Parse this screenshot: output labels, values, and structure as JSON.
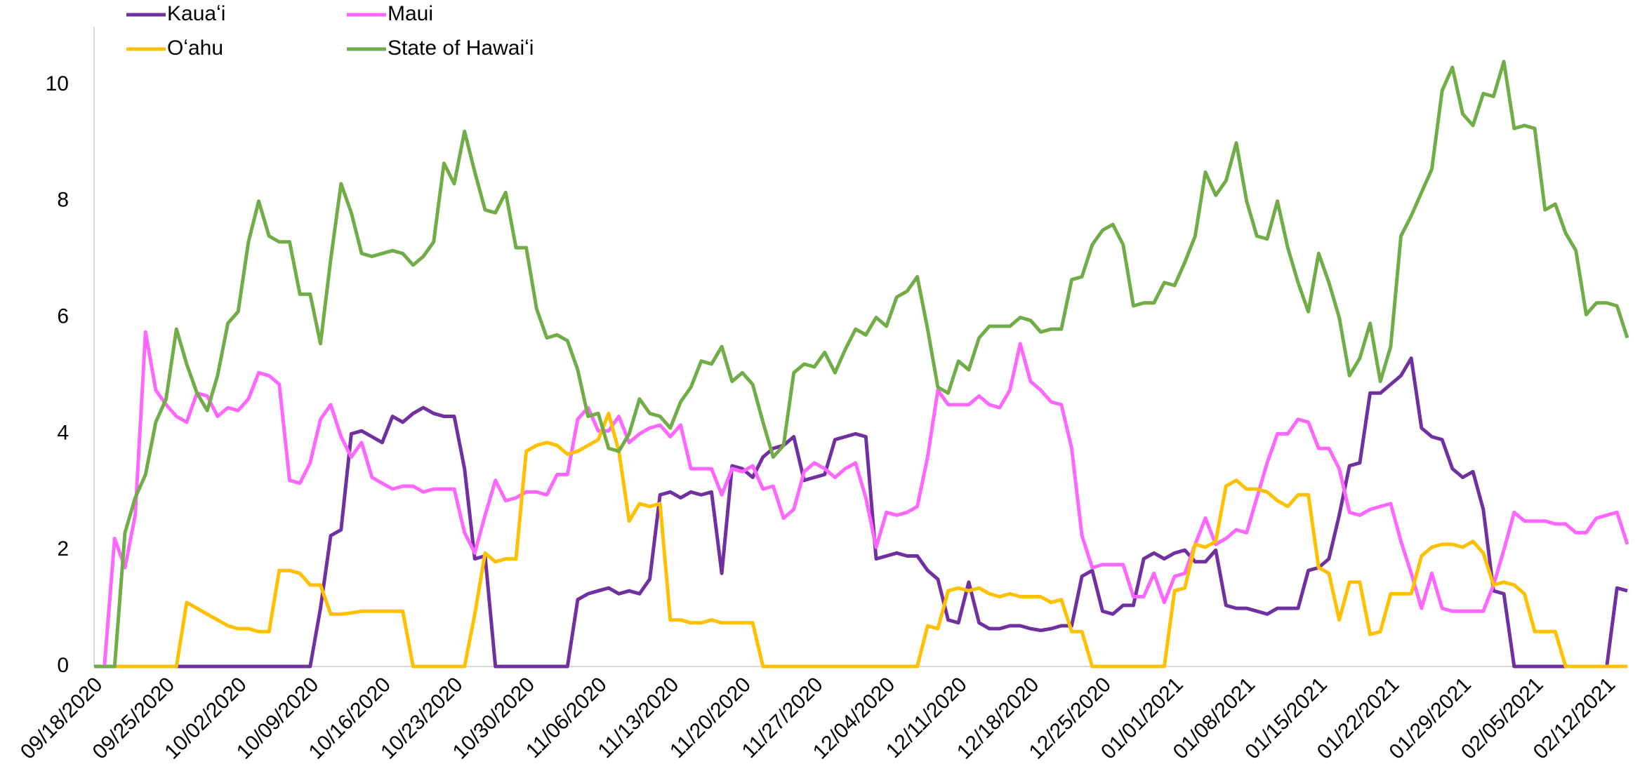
{
  "chart_data": {
    "type": "line",
    "categories": [
      "09/18/2020",
      null,
      null,
      null,
      null,
      null,
      null,
      "09/25/2020",
      null,
      null,
      null,
      null,
      null,
      null,
      "10/02/2020",
      null,
      null,
      null,
      null,
      null,
      null,
      "10/09/2020",
      null,
      null,
      null,
      null,
      null,
      null,
      "10/16/2020",
      null,
      null,
      null,
      null,
      null,
      null,
      "10/23/2020",
      null,
      null,
      null,
      null,
      null,
      null,
      "10/30/2020",
      null,
      null,
      null,
      null,
      null,
      null,
      "11/06/2020",
      null,
      null,
      null,
      null,
      null,
      null,
      "11/13/2020",
      null,
      null,
      null,
      null,
      null,
      null,
      "11/20/2020",
      null,
      null,
      null,
      null,
      null,
      null,
      "11/27/2020",
      null,
      null,
      null,
      null,
      null,
      null,
      "12/04/2020",
      null,
      null,
      null,
      null,
      null,
      null,
      "12/11/2020",
      null,
      null,
      null,
      null,
      null,
      null,
      "12/18/2020",
      null,
      null,
      null,
      null,
      null,
      null,
      "12/25/2020",
      null,
      null,
      null,
      null,
      null,
      null,
      "01/01/2021",
      null,
      null,
      null,
      null,
      null,
      null,
      "01/08/2021",
      null,
      null,
      null,
      null,
      null,
      null,
      "01/15/2021",
      null,
      null,
      null,
      null,
      null,
      null,
      "01/22/2021",
      null,
      null,
      null,
      null,
      null,
      null,
      "01/29/2021",
      null,
      null,
      null,
      null,
      null,
      null,
      "02/05/2021",
      null,
      null,
      null,
      null,
      null,
      null,
      "02/12/2021",
      null,
      null
    ],
    "series": [
      {
        "name": "Kauaʻi",
        "color": "#7030a0",
        "values": [
          0,
          0,
          0,
          0,
          0,
          0,
          0,
          0,
          0,
          0,
          0,
          0,
          0,
          0,
          0,
          0,
          0,
          0,
          0,
          0,
          0,
          0,
          1.0,
          2.25,
          2.35,
          4.0,
          4.05,
          3.95,
          3.85,
          4.3,
          4.2,
          4.35,
          4.45,
          4.35,
          4.3,
          4.3,
          3.4,
          1.85,
          1.9,
          0,
          0,
          0,
          0,
          0,
          0,
          0,
          0,
          1.15,
          1.25,
          1.3,
          1.35,
          1.25,
          1.3,
          1.25,
          1.5,
          2.95,
          3.0,
          2.9,
          3.0,
          2.95,
          3.0,
          1.6,
          3.45,
          3.4,
          3.25,
          3.6,
          3.75,
          3.8,
          3.95,
          3.2,
          3.25,
          3.3,
          3.9,
          3.95,
          4.0,
          3.95,
          1.85,
          1.9,
          1.95,
          1.9,
          1.9,
          1.65,
          1.5,
          0.8,
          0.75,
          1.45,
          0.75,
          0.65,
          0.65,
          0.7,
          0.7,
          0.65,
          0.62,
          0.65,
          0.7,
          0.7,
          1.55,
          1.65,
          0.95,
          0.9,
          1.05,
          1.05,
          1.85,
          1.95,
          1.85,
          1.95,
          2.0,
          1.8,
          1.8,
          2.0,
          1.05,
          1.0,
          1.0,
          0.95,
          0.9,
          1.0,
          1.0,
          1.0,
          1.65,
          1.7,
          1.85,
          2.6,
          3.45,
          3.5,
          4.7,
          4.7,
          4.85,
          5.0,
          5.3,
          4.1,
          3.95,
          3.9,
          3.4,
          3.25,
          3.35,
          2.7,
          1.3,
          1.25,
          0,
          0,
          0,
          0,
          0,
          0,
          0,
          0,
          0,
          0,
          1.35,
          1.3
        ]
      },
      {
        "name": "Maui",
        "color": "#ff66ff",
        "values": [
          0,
          0,
          2.2,
          1.7,
          2.6,
          5.75,
          4.75,
          4.5,
          4.3,
          4.2,
          4.7,
          4.65,
          4.3,
          4.45,
          4.4,
          4.6,
          5.05,
          5.0,
          4.85,
          3.2,
          3.15,
          3.5,
          4.25,
          4.5,
          3.95,
          3.6,
          3.85,
          3.25,
          3.15,
          3.05,
          3.1,
          3.1,
          3.0,
          3.05,
          3.05,
          3.05,
          2.3,
          1.95,
          2.6,
          3.2,
          2.85,
          2.9,
          3.0,
          3.0,
          2.95,
          3.3,
          3.3,
          4.25,
          4.45,
          4.05,
          4.05,
          4.3,
          3.85,
          4.0,
          4.1,
          4.15,
          3.95,
          4.15,
          3.4,
          3.4,
          3.4,
          2.95,
          3.4,
          3.35,
          3.45,
          3.05,
          3.1,
          2.55,
          2.7,
          3.35,
          3.5,
          3.4,
          3.25,
          3.4,
          3.5,
          2.9,
          2.05,
          2.65,
          2.6,
          2.65,
          2.75,
          3.6,
          4.75,
          4.5,
          4.5,
          4.5,
          4.65,
          4.5,
          4.45,
          4.75,
          5.55,
          4.9,
          4.75,
          4.55,
          4.5,
          3.75,
          2.25,
          1.7,
          1.75,
          1.75,
          1.75,
          1.2,
          1.2,
          1.6,
          1.1,
          1.55,
          1.6,
          2.1,
          2.55,
          2.1,
          2.2,
          2.35,
          2.3,
          2.9,
          3.5,
          4.0,
          4.0,
          4.25,
          4.2,
          3.75,
          3.75,
          3.4,
          2.65,
          2.6,
          2.7,
          2.75,
          2.8,
          2.15,
          1.6,
          1.0,
          1.6,
          1.0,
          0.95,
          0.95,
          0.95,
          0.95,
          1.4,
          2.0,
          2.65,
          2.5,
          2.5,
          2.5,
          2.45,
          2.45,
          2.3,
          2.3,
          2.55,
          2.6,
          2.65,
          2.1
        ]
      },
      {
        "name": "Oʻahu",
        "color": "#ffc000",
        "values": [
          0,
          0,
          0,
          0,
          0,
          0,
          0,
          0,
          0,
          1.1,
          1.0,
          0.9,
          0.8,
          0.7,
          0.65,
          0.65,
          0.6,
          0.6,
          1.65,
          1.65,
          1.6,
          1.4,
          1.4,
          0.9,
          0.9,
          0.92,
          0.95,
          0.95,
          0.95,
          0.95,
          0.95,
          0,
          0,
          0,
          0,
          0,
          0,
          0.9,
          1.95,
          1.8,
          1.85,
          1.85,
          3.7,
          3.8,
          3.85,
          3.8,
          3.65,
          3.7,
          3.8,
          3.9,
          4.35,
          3.7,
          2.5,
          2.8,
          2.75,
          2.8,
          0.8,
          0.8,
          0.75,
          0.75,
          0.8,
          0.75,
          0.75,
          0.75,
          0.75,
          0,
          0,
          0,
          0,
          0,
          0,
          0,
          0,
          0,
          0,
          0,
          0,
          0,
          0,
          0,
          0,
          0.7,
          0.65,
          1.3,
          1.35,
          1.3,
          1.35,
          1.25,
          1.2,
          1.25,
          1.2,
          1.2,
          1.2,
          1.1,
          1.15,
          0.6,
          0.6,
          0,
          0,
          0,
          0,
          0,
          0,
          0,
          0,
          1.3,
          1.35,
          2.1,
          2.05,
          2.15,
          3.1,
          3.2,
          3.05,
          3.05,
          3.0,
          2.85,
          2.75,
          2.95,
          2.95,
          1.7,
          1.6,
          0.8,
          1.45,
          1.45,
          0.55,
          0.6,
          1.25,
          1.25,
          1.25,
          1.9,
          2.05,
          2.1,
          2.1,
          2.05,
          2.15,
          1.95,
          1.4,
          1.45,
          1.4,
          1.25,
          0.6,
          0.6,
          0.6,
          0,
          0,
          0,
          0,
          0,
          0,
          0
        ]
      },
      {
        "name": "State of Hawaiʻi",
        "color": "#70ad47",
        "values": [
          0,
          0,
          0,
          2.3,
          2.9,
          3.3,
          4.2,
          4.6,
          5.8,
          5.2,
          4.7,
          4.4,
          5.0,
          5.9,
          6.1,
          7.3,
          8.0,
          7.4,
          7.3,
          7.3,
          6.4,
          6.4,
          5.55,
          7.0,
          8.3,
          7.8,
          7.1,
          7.05,
          7.1,
          7.15,
          7.1,
          6.9,
          7.05,
          7.3,
          8.65,
          8.3,
          9.2,
          8.5,
          7.85,
          7.8,
          8.15,
          7.2,
          7.2,
          6.15,
          5.65,
          5.7,
          5.6,
          5.1,
          4.3,
          4.35,
          3.75,
          3.7,
          4.0,
          4.6,
          4.35,
          4.3,
          4.1,
          4.55,
          4.8,
          5.25,
          5.2,
          5.5,
          4.9,
          5.05,
          4.85,
          4.2,
          3.6,
          3.8,
          5.05,
          5.2,
          5.15,
          5.4,
          5.05,
          5.45,
          5.8,
          5.7,
          6.0,
          5.85,
          6.35,
          6.45,
          6.7,
          5.8,
          4.8,
          4.7,
          5.25,
          5.1,
          5.65,
          5.85,
          5.85,
          5.85,
          6.0,
          5.95,
          5.75,
          5.8,
          5.8,
          6.65,
          6.7,
          7.25,
          7.5,
          7.6,
          7.25,
          6.2,
          6.25,
          6.25,
          6.6,
          6.55,
          6.95,
          7.4,
          8.5,
          8.1,
          8.35,
          9.0,
          8.0,
          7.4,
          7.35,
          8.0,
          7.2,
          6.6,
          6.1,
          7.1,
          6.6,
          6.0,
          5.0,
          5.3,
          5.9,
          4.9,
          5.5,
          7.4,
          7.75,
          8.15,
          8.55,
          9.9,
          10.3,
          9.5,
          9.3,
          9.85,
          9.8,
          10.4,
          9.25,
          9.3,
          9.25,
          7.85,
          7.95,
          7.45,
          7.15,
          6.05,
          6.25,
          6.25,
          6.2,
          5.65
        ]
      }
    ],
    "ylim": [
      0,
      11
    ],
    "yticks": [
      0,
      2,
      4,
      6,
      8,
      10
    ],
    "grid": false,
    "legend": "upper left"
  }
}
